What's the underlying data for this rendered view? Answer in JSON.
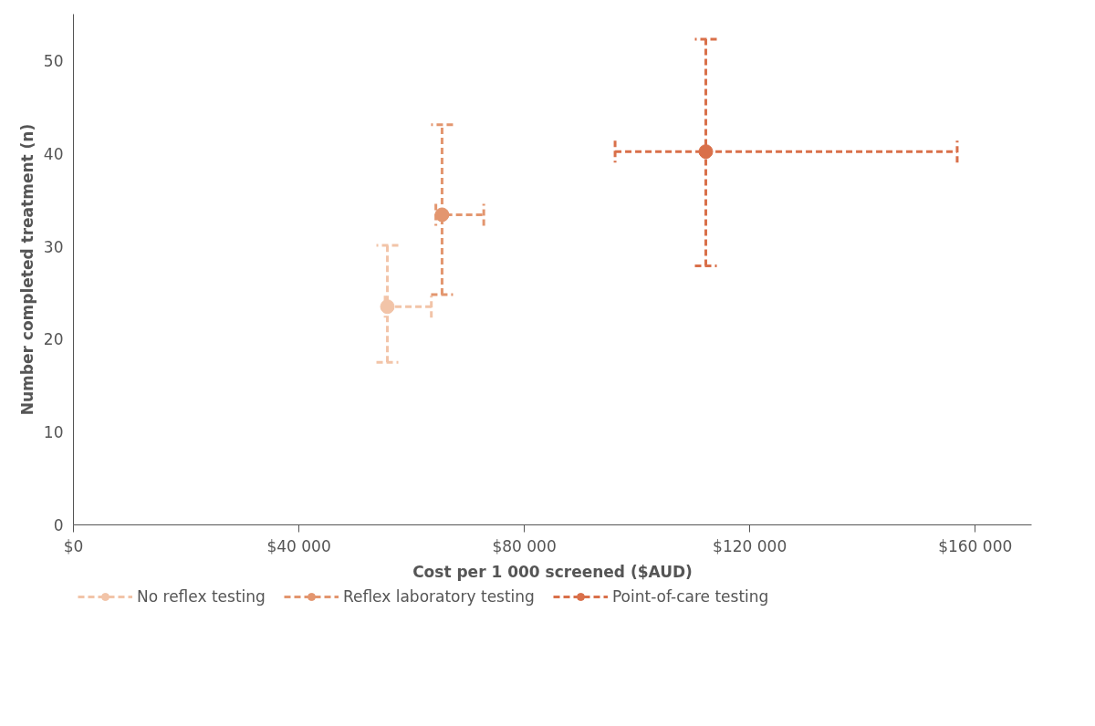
{
  "chart_data": {
    "type": "scatter",
    "xlabel": "Cost per 1 000 screened ($AUD)",
    "ylabel": "Number completed treatment (n)",
    "xlim": [
      0,
      170000
    ],
    "ylim": [
      0,
      55
    ],
    "xticks": [
      {
        "value": 0,
        "label": "$0"
      },
      {
        "value": 40000,
        "label": "$40 000"
      },
      {
        "value": 80000,
        "label": "$80 000"
      },
      {
        "value": 120000,
        "label": "$120 000"
      },
      {
        "value": 160000,
        "label": "$160 000"
      }
    ],
    "yticks": [
      0,
      10,
      20,
      30,
      40,
      50
    ],
    "grid": false,
    "legend": "bottom",
    "marker": "circle",
    "line_style": "dashed",
    "series": [
      {
        "name": "No reflex testing",
        "color": "#f2c4a8",
        "x": [
          55700
        ],
        "values": [
          23.5
        ],
        "errors": [
          [
            17.5,
            30.1
          ]
        ],
        "xerrors": [
          [
            55300,
            63500
          ]
        ]
      },
      {
        "name": "Reflex laboratory testing",
        "color": "#e3966f",
        "x": [
          65400
        ],
        "values": [
          33.4
        ],
        "errors": [
          [
            24.8,
            43.1
          ]
        ],
        "xerrors": [
          [
            64300,
            72800
          ]
        ]
      },
      {
        "name": "Point-of-care testing",
        "color": "#d9704a",
        "x": [
          112200
        ],
        "values": [
          40.2
        ],
        "errors": [
          [
            27.9,
            52.3
          ]
        ],
        "xerrors": [
          [
            96100,
            156800
          ]
        ]
      }
    ]
  }
}
